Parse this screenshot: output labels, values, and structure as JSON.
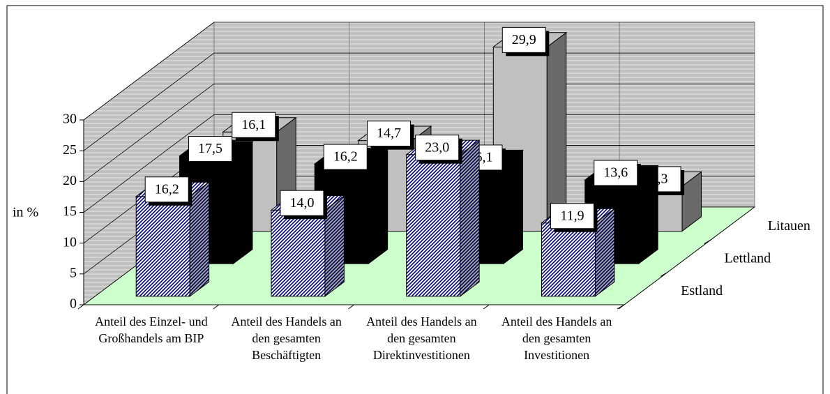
{
  "chart_data": {
    "type": "bar3d",
    "y_label": "in %",
    "categories": [
      "Anteil des Einzel- und Großhandels am BIP",
      "Anteil des Handels an den gesamten Beschäftigten",
      "Anteil des Handels an den gesamten Direktinvestitionen",
      "Anteil des Handels an den gesamten Investitionen"
    ],
    "series": [
      {
        "name": "Estland",
        "color": "#000080",
        "pattern": "hatch",
        "values": [
          16.2,
          14.0,
          23.0,
          11.9
        ],
        "value_labels": [
          "16,2",
          "14,0",
          "23,0",
          "11,9"
        ]
      },
      {
        "name": "Lettland",
        "color": "#000000",
        "values": [
          17.5,
          16.2,
          16.1,
          13.6
        ],
        "value_labels": [
          "17,5",
          "16,2",
          "16,1",
          "13,6"
        ]
      },
      {
        "name": "Litauen",
        "color": "#c0c0c0",
        "values": [
          16.1,
          14.7,
          29.9,
          7.3
        ],
        "value_labels": [
          "16,1",
          "14,7",
          "29,9",
          "7,3"
        ]
      }
    ],
    "ylim": [
      0,
      30
    ],
    "yticks": [
      0,
      5,
      10,
      15,
      20,
      25,
      30
    ],
    "grid": true
  }
}
